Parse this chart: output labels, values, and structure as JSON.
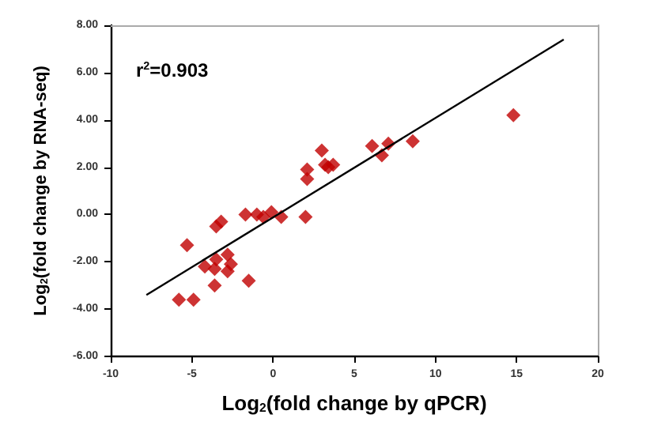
{
  "chart_data": {
    "type": "scatter",
    "xlabel": "Log$_{2}$(fold change by qPCR)",
    "ylabel": "Log$_{2}$(fold change by RNA-seq)",
    "annotations": [
      "r$^{2}$=0.903"
    ],
    "marker": "diamond",
    "series": [
      {
        "type": "scatter",
        "color": "#c00000",
        "x": [
          -5.8,
          -4.9,
          -5.3,
          -4.2,
          -3.6,
          -3.6,
          -3.5,
          -3.5,
          -3.2,
          -2.8,
          -2.8,
          -2.6,
          -1.5,
          -1.7,
          -1.0,
          -0.6,
          -0.1,
          0.5,
          2.0,
          2.1,
          2.1,
          3.0,
          3.2,
          3.4,
          3.7,
          6.1,
          6.7,
          7.1,
          8.6,
          14.8
        ],
        "values": [
          -3.6,
          -3.6,
          -1.3,
          -2.2,
          -2.3,
          -3.0,
          -1.9,
          -0.5,
          -0.3,
          -1.7,
          -2.4,
          -2.1,
          -2.8,
          0.0,
          0.0,
          -0.1,
          0.1,
          -0.1,
          -0.1,
          1.5,
          1.9,
          2.7,
          2.1,
          2.0,
          2.1,
          2.9,
          2.5,
          3.0,
          3.1,
          4.2
        ]
      },
      {
        "type": "line",
        "color": "#000000",
        "marker": "none",
        "x": [
          -7.8,
          17.9
        ],
        "values": [
          -3.4,
          7.4
        ]
      }
    ],
    "xlim": [
      -10,
      20
    ],
    "xticks": [
      -10,
      -5,
      0,
      5,
      10,
      15,
      20
    ],
    "ylim": [
      -6,
      8
    ],
    "yticks": [
      {
        "value": -6,
        "label": "-6.00"
      },
      {
        "value": -4,
        "label": "-4.00"
      },
      {
        "value": -2,
        "label": "-2.00"
      },
      {
        "value": 0,
        "label": "0.00"
      },
      {
        "value": 2,
        "label": "2.00"
      },
      {
        "value": 4,
        "label": "4.00"
      },
      {
        "value": 6,
        "label": "6.00"
      },
      {
        "value": 8,
        "label": "8.00"
      }
    ],
    "grid": false
  }
}
